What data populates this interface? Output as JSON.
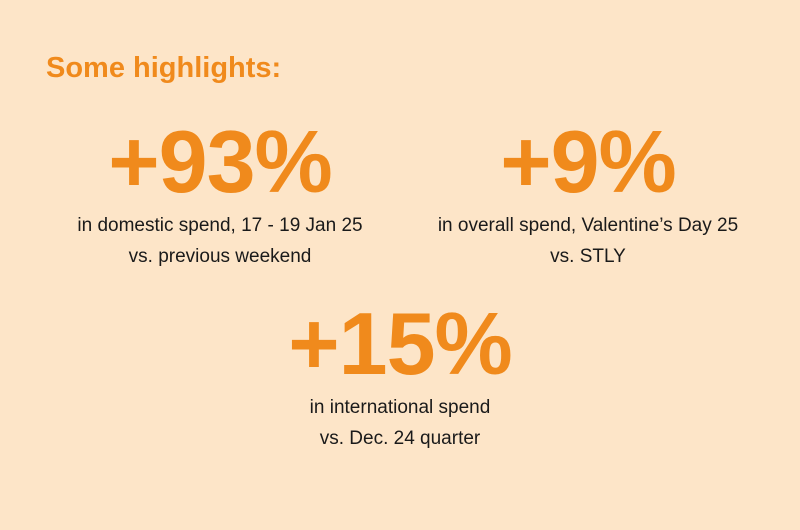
{
  "heading": "Some highlights:",
  "stats": [
    {
      "value": "+93%",
      "line1": "in domestic spend, 17 - 19 Jan 25",
      "line2": "vs. previous weekend"
    },
    {
      "value": "+9%",
      "line1": "in overall spend, Valentine’s Day 25",
      "line2": "vs. STLY"
    },
    {
      "value": "+15%",
      "line1": "in international spend",
      "line2": "vs. Dec. 24 quarter"
    }
  ],
  "colors": {
    "background": "#fde5c8",
    "accent": "#f08a1c",
    "text": "#1a1a1a"
  }
}
